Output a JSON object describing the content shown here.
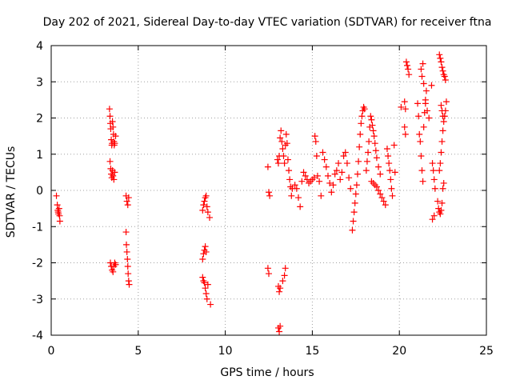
{
  "chart_data": {
    "type": "scatter",
    "title": "Day 202 of 2021, Sidereal Day-to-day VTEC variation (SDTVAR) for receiver ftna",
    "xlabel": "GPS time / hours",
    "ylabel": "SDTVAR / TECUs",
    "xlim": [
      0,
      25
    ],
    "ylim": [
      -4,
      4
    ],
    "x_ticks": [
      0,
      5,
      10,
      15,
      20,
      25
    ],
    "x_tick_labels": [
      "0",
      "5",
      "10",
      "15",
      "20",
      "25"
    ],
    "y_ticks": [
      -4,
      -3,
      -2,
      -1,
      0,
      1,
      2,
      3,
      4
    ],
    "y_tick_labels": [
      "-4",
      "-3",
      "-2",
      "-1",
      "0",
      "1",
      "2",
      "3",
      "4"
    ],
    "grid": true,
    "marker": "+",
    "color": "#ff0000",
    "series": [
      {
        "name": "SDTVAR",
        "points": [
          [
            0.3,
            -0.15
          ],
          [
            0.35,
            -0.4
          ],
          [
            0.38,
            -0.55
          ],
          [
            0.4,
            -0.6
          ],
          [
            0.42,
            -0.65
          ],
          [
            0.45,
            -0.5
          ],
          [
            0.48,
            -0.7
          ],
          [
            0.5,
            -0.85
          ],
          [
            3.35,
            2.25
          ],
          [
            3.38,
            2.05
          ],
          [
            3.4,
            1.85
          ],
          [
            3.42,
            1.7
          ],
          [
            3.45,
            1.4
          ],
          [
            3.48,
            1.25
          ],
          [
            3.5,
            1.3
          ],
          [
            3.52,
            1.9
          ],
          [
            3.55,
            1.75
          ],
          [
            3.58,
            1.55
          ],
          [
            3.6,
            1.35
          ],
          [
            3.62,
            1.25
          ],
          [
            3.65,
            1.3
          ],
          [
            3.7,
            1.5
          ],
          [
            3.38,
            0.8
          ],
          [
            3.42,
            0.6
          ],
          [
            3.45,
            0.45
          ],
          [
            3.48,
            0.35
          ],
          [
            3.52,
            0.55
          ],
          [
            3.55,
            0.4
          ],
          [
            3.6,
            0.3
          ],
          [
            3.65,
            0.5
          ],
          [
            3.4,
            -2.0
          ],
          [
            3.45,
            -2.1
          ],
          [
            3.5,
            -2.2
          ],
          [
            3.55,
            -2.25
          ],
          [
            3.6,
            -2.1
          ],
          [
            3.65,
            -2.0
          ],
          [
            3.7,
            -2.05
          ],
          [
            4.3,
            -0.15
          ],
          [
            4.35,
            -0.3
          ],
          [
            4.4,
            -0.4
          ],
          [
            4.45,
            -0.2
          ],
          [
            4.3,
            -1.15
          ],
          [
            4.32,
            -1.5
          ],
          [
            4.35,
            -1.7
          ],
          [
            4.38,
            -1.9
          ],
          [
            4.4,
            -2.1
          ],
          [
            4.42,
            -2.3
          ],
          [
            4.45,
            -2.5
          ],
          [
            4.48,
            -2.6
          ],
          [
            8.7,
            -0.55
          ],
          [
            8.75,
            -0.4
          ],
          [
            8.8,
            -0.3
          ],
          [
            8.85,
            -0.2
          ],
          [
            8.9,
            -0.15
          ],
          [
            8.95,
            -0.45
          ],
          [
            9.0,
            -0.6
          ],
          [
            9.1,
            -0.75
          ],
          [
            8.7,
            -1.9
          ],
          [
            8.75,
            -1.75
          ],
          [
            8.8,
            -1.65
          ],
          [
            8.85,
            -1.55
          ],
          [
            8.9,
            -1.7
          ],
          [
            8.7,
            -2.4
          ],
          [
            8.75,
            -2.5
          ],
          [
            8.8,
            -2.55
          ],
          [
            8.85,
            -2.7
          ],
          [
            8.9,
            -2.85
          ],
          [
            8.95,
            -3.0
          ],
          [
            9.0,
            -2.6
          ],
          [
            9.15,
            -3.15
          ],
          [
            12.45,
            0.65
          ],
          [
            12.5,
            -0.05
          ],
          [
            12.55,
            -0.15
          ],
          [
            12.45,
            -2.15
          ],
          [
            12.5,
            -2.3
          ],
          [
            13.0,
            0.85
          ],
          [
            13.05,
            0.75
          ],
          [
            13.1,
            0.95
          ],
          [
            13.15,
            1.45
          ],
          [
            13.2,
            1.65
          ],
          [
            13.25,
            1.35
          ],
          [
            13.3,
            1.15
          ],
          [
            13.35,
            0.95
          ],
          [
            13.4,
            0.75
          ],
          [
            13.45,
            1.25
          ],
          [
            13.5,
            1.55
          ],
          [
            13.55,
            1.3
          ],
          [
            13.6,
            0.85
          ],
          [
            13.65,
            0.55
          ],
          [
            13.7,
            0.3
          ],
          [
            13.75,
            0.1
          ],
          [
            13.8,
            -0.15
          ],
          [
            13.85,
            0.05
          ],
          [
            13.05,
            -2.65
          ],
          [
            13.1,
            -2.8
          ],
          [
            13.15,
            -2.7
          ],
          [
            13.3,
            -2.5
          ],
          [
            13.4,
            -2.35
          ],
          [
            13.45,
            -2.15
          ],
          [
            13.05,
            -3.8
          ],
          [
            13.1,
            -3.9
          ],
          [
            13.15,
            -3.75
          ],
          [
            14.0,
            0.15
          ],
          [
            14.1,
            0.05
          ],
          [
            14.2,
            -0.2
          ],
          [
            14.3,
            -0.45
          ],
          [
            14.4,
            0.25
          ],
          [
            14.5,
            0.5
          ],
          [
            14.6,
            0.4
          ],
          [
            14.7,
            0.3
          ],
          [
            14.8,
            0.2
          ],
          [
            14.9,
            0.25
          ],
          [
            15.0,
            0.3
          ],
          [
            15.1,
            0.35
          ],
          [
            15.15,
            1.5
          ],
          [
            15.2,
            1.35
          ],
          [
            15.25,
            0.95
          ],
          [
            15.3,
            0.4
          ],
          [
            15.4,
            0.25
          ],
          [
            15.5,
            -0.15
          ],
          [
            15.6,
            1.05
          ],
          [
            15.7,
            0.85
          ],
          [
            15.8,
            0.65
          ],
          [
            15.9,
            0.4
          ],
          [
            16.0,
            0.2
          ],
          [
            16.1,
            -0.05
          ],
          [
            16.2,
            0.15
          ],
          [
            16.3,
            0.45
          ],
          [
            16.4,
            0.55
          ],
          [
            16.5,
            0.75
          ],
          [
            16.6,
            0.3
          ],
          [
            16.7,
            0.5
          ],
          [
            16.8,
            0.95
          ],
          [
            16.9,
            1.05
          ],
          [
            17.0,
            0.75
          ],
          [
            17.1,
            0.35
          ],
          [
            17.2,
            0.05
          ],
          [
            17.3,
            -1.1
          ],
          [
            17.35,
            -0.85
          ],
          [
            17.4,
            -0.6
          ],
          [
            17.45,
            -0.35
          ],
          [
            17.5,
            -0.1
          ],
          [
            17.55,
            0.15
          ],
          [
            17.6,
            0.45
          ],
          [
            17.65,
            0.8
          ],
          [
            17.7,
            1.2
          ],
          [
            17.75,
            1.55
          ],
          [
            17.8,
            1.85
          ],
          [
            17.85,
            2.05
          ],
          [
            17.9,
            2.2
          ],
          [
            17.95,
            2.3
          ],
          [
            18.0,
            2.25
          ],
          [
            18.1,
            0.55
          ],
          [
            18.15,
            0.8
          ],
          [
            18.2,
            1.05
          ],
          [
            18.25,
            1.35
          ],
          [
            18.3,
            1.75
          ],
          [
            18.35,
            2.05
          ],
          [
            18.4,
            1.95
          ],
          [
            18.45,
            1.8
          ],
          [
            18.5,
            1.65
          ],
          [
            18.55,
            1.5
          ],
          [
            18.6,
            1.3
          ],
          [
            18.65,
            1.1
          ],
          [
            18.7,
            0.9
          ],
          [
            18.8,
            0.65
          ],
          [
            18.9,
            0.45
          ],
          [
            18.4,
            0.25
          ],
          [
            18.5,
            0.2
          ],
          [
            18.6,
            0.15
          ],
          [
            18.7,
            0.1
          ],
          [
            18.8,
            0.0
          ],
          [
            18.9,
            -0.1
          ],
          [
            19.0,
            -0.2
          ],
          [
            19.1,
            -0.3
          ],
          [
            19.2,
            -0.4
          ],
          [
            19.3,
            1.15
          ],
          [
            19.35,
            0.95
          ],
          [
            19.4,
            0.75
          ],
          [
            19.45,
            0.55
          ],
          [
            19.5,
            0.3
          ],
          [
            19.55,
            0.05
          ],
          [
            19.6,
            -0.15
          ],
          [
            19.7,
            1.25
          ],
          [
            19.75,
            0.5
          ],
          [
            20.1,
            2.3
          ],
          [
            20.3,
            2.45
          ],
          [
            20.35,
            2.25
          ],
          [
            20.3,
            1.75
          ],
          [
            20.35,
            1.55
          ],
          [
            20.4,
            3.55
          ],
          [
            20.45,
            3.45
          ],
          [
            20.5,
            3.35
          ],
          [
            20.55,
            3.2
          ],
          [
            21.05,
            2.4
          ],
          [
            21.1,
            2.05
          ],
          [
            21.15,
            1.55
          ],
          [
            21.2,
            1.35
          ],
          [
            21.25,
            0.95
          ],
          [
            21.3,
            0.55
          ],
          [
            21.35,
            0.25
          ],
          [
            21.4,
            1.75
          ],
          [
            21.45,
            2.15
          ],
          [
            21.5,
            2.5
          ],
          [
            21.55,
            2.75
          ],
          [
            21.25,
            3.35
          ],
          [
            21.3,
            3.15
          ],
          [
            21.35,
            3.5
          ],
          [
            21.4,
            2.95
          ],
          [
            21.5,
            2.4
          ],
          [
            21.6,
            2.2
          ],
          [
            21.7,
            2.0
          ],
          [
            21.85,
            2.9
          ],
          [
            21.9,
            0.75
          ],
          [
            21.95,
            0.55
          ],
          [
            22.0,
            0.3
          ],
          [
            22.05,
            0.05
          ],
          [
            21.9,
            -0.8
          ],
          [
            22.0,
            -0.7
          ],
          [
            22.2,
            -0.3
          ],
          [
            22.25,
            -0.5
          ],
          [
            22.3,
            -0.6
          ],
          [
            22.35,
            -0.65
          ],
          [
            22.4,
            -0.55
          ],
          [
            22.45,
            -0.35
          ],
          [
            22.5,
            0.05
          ],
          [
            22.55,
            0.2
          ],
          [
            22.3,
            3.75
          ],
          [
            22.35,
            3.65
          ],
          [
            22.4,
            3.55
          ],
          [
            22.45,
            3.4
          ],
          [
            22.5,
            3.3
          ],
          [
            22.55,
            3.2
          ],
          [
            22.6,
            3.15
          ],
          [
            22.65,
            3.05
          ],
          [
            22.3,
            0.55
          ],
          [
            22.35,
            0.75
          ],
          [
            22.4,
            1.05
          ],
          [
            22.45,
            1.35
          ],
          [
            22.5,
            1.65
          ],
          [
            22.55,
            1.9
          ],
          [
            22.6,
            2.05
          ],
          [
            22.65,
            2.2
          ],
          [
            22.7,
            2.45
          ],
          [
            22.4,
            2.35
          ],
          [
            22.45,
            2.2
          ],
          [
            22.5,
            2.05
          ]
        ]
      }
    ]
  }
}
